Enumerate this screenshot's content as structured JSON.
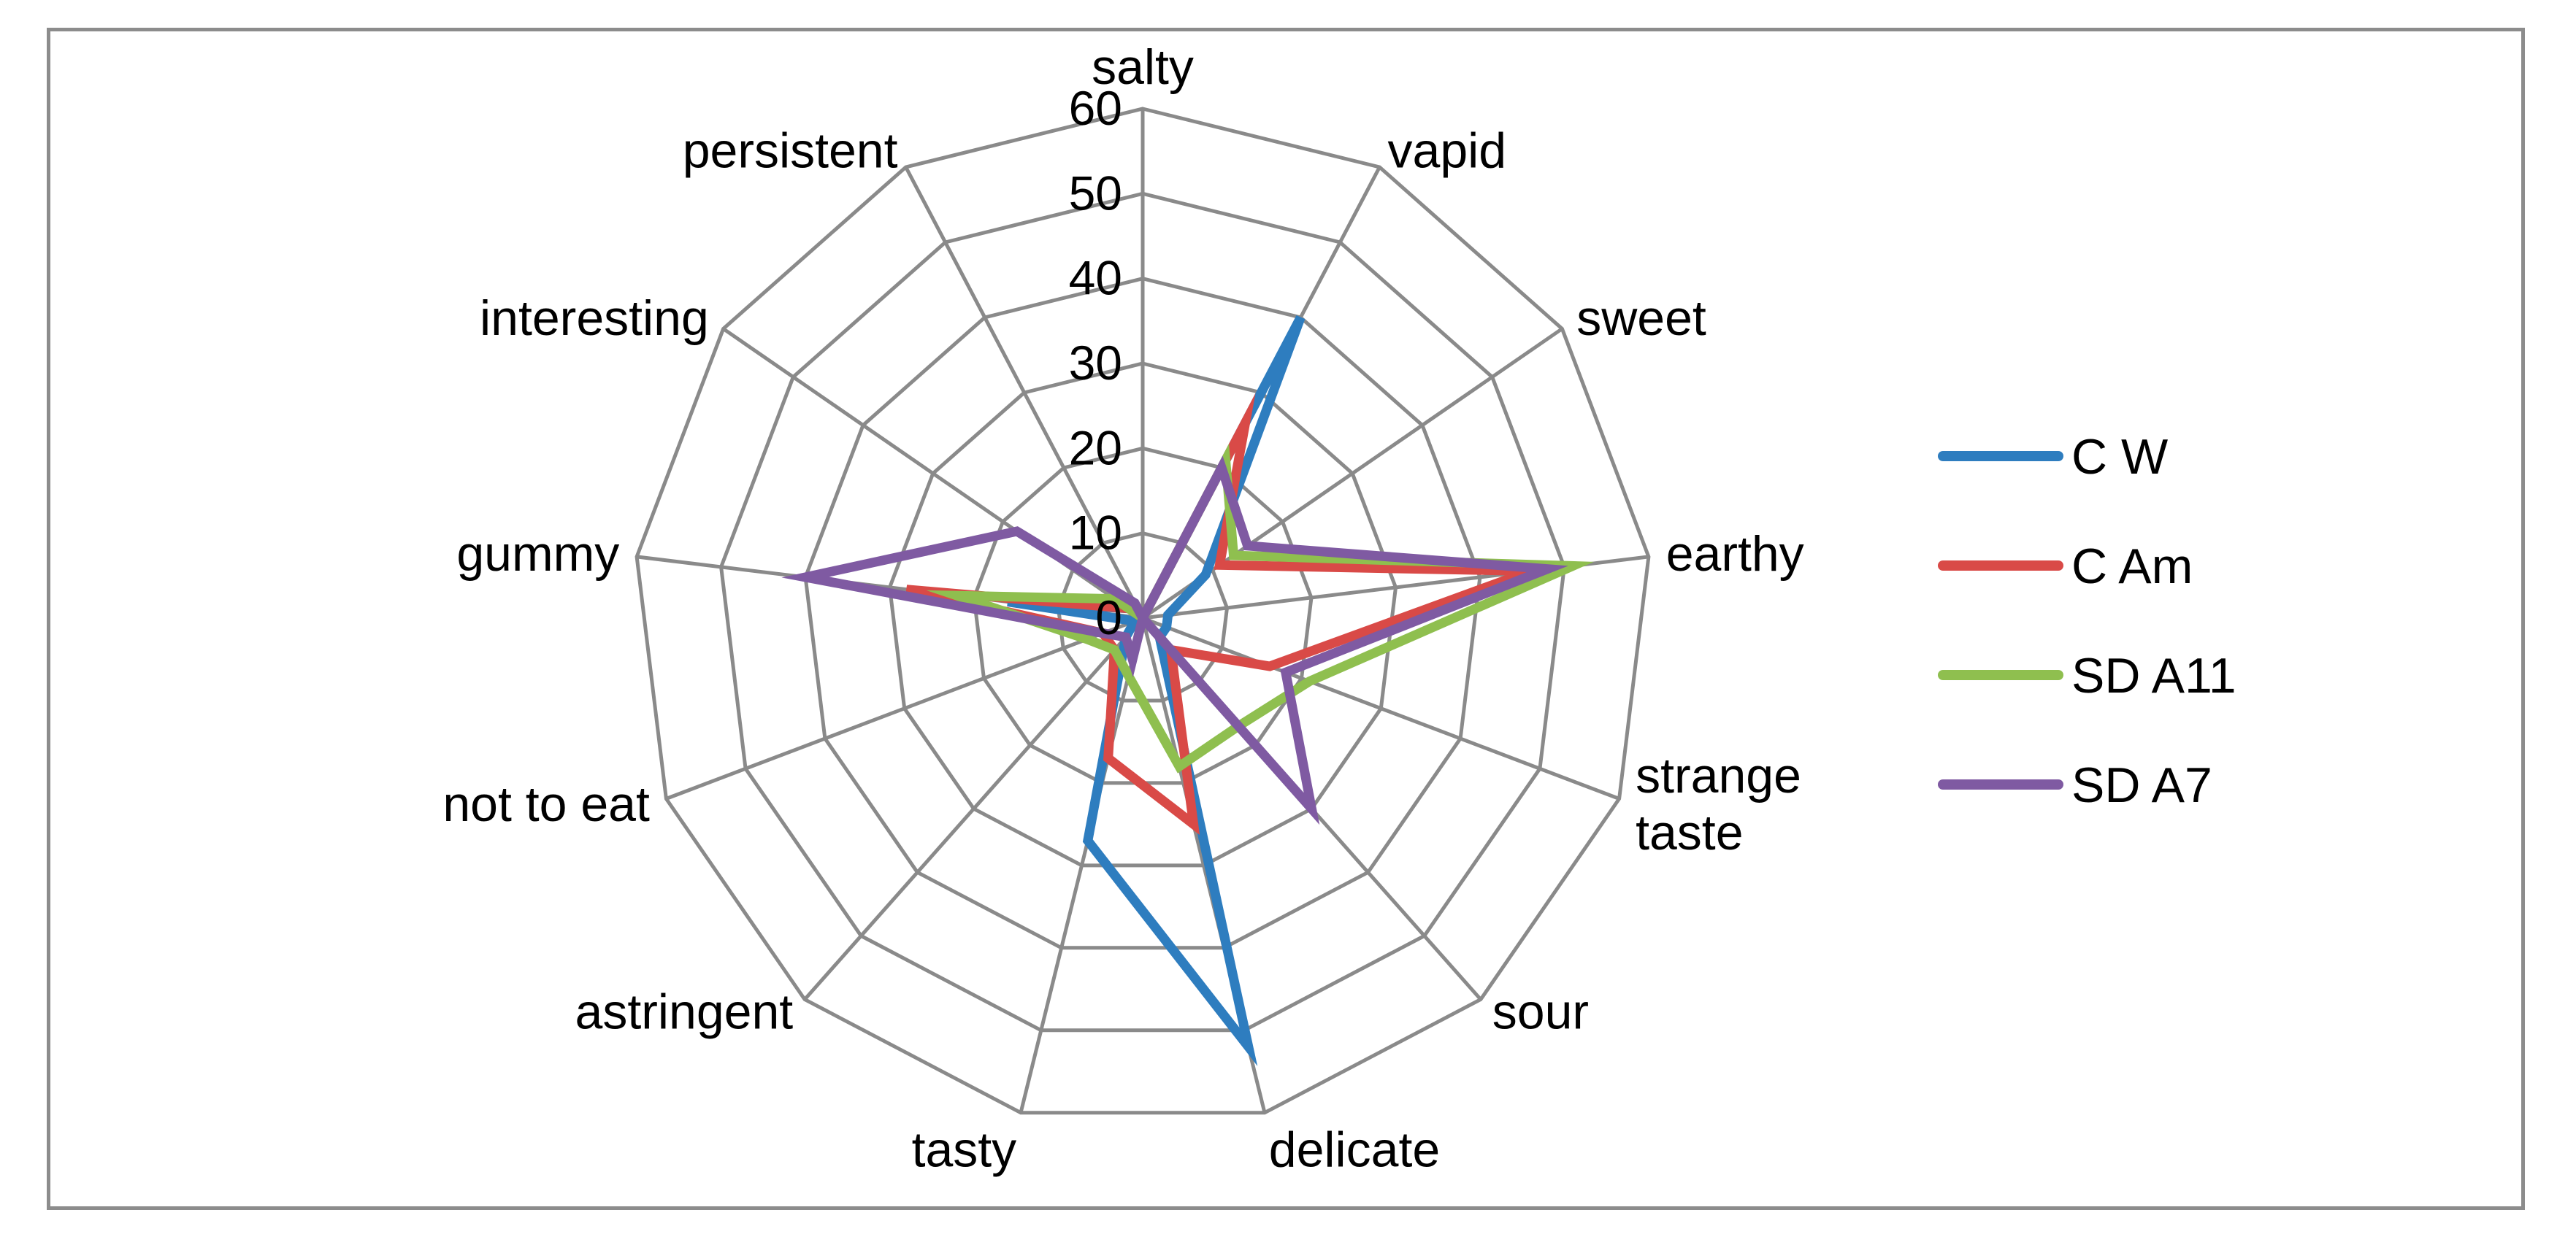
{
  "chart_data": {
    "type": "radar",
    "categories": [
      "salty",
      "vapid",
      "sweet",
      "earthy",
      "strange taste",
      "sour",
      "delicate",
      "tasty",
      "astringent",
      "not to eat",
      "gummy",
      "interesting",
      "persistent"
    ],
    "category_lines": [
      [
        "salty"
      ],
      [
        "vapid"
      ],
      [
        "sweet"
      ],
      [
        "earthy"
      ],
      [
        "strange",
        "taste"
      ],
      [
        "sour"
      ],
      [
        "delicate"
      ],
      [
        "tasty"
      ],
      [
        "astringent"
      ],
      [
        "not to eat"
      ],
      [
        "gummy"
      ],
      [
        "interesting"
      ],
      [
        "persistent"
      ]
    ],
    "radial_range": [
      0,
      60
    ],
    "radial_ticks": [
      0,
      10,
      20,
      30,
      40,
      50,
      60
    ],
    "grid": true,
    "legend_position": "right",
    "series": [
      {
        "name": "C W",
        "color": "#2e7dbf",
        "values": [
          0,
          40,
          9,
          3,
          3,
          3,
          52,
          27,
          3,
          1,
          16,
          2,
          0
        ]
      },
      {
        "name": "C Am",
        "color": "#d94a47",
        "values": [
          0,
          26,
          11,
          46,
          16,
          5,
          25,
          17,
          5,
          5,
          28,
          2,
          0
        ]
      },
      {
        "name": "SD A11",
        "color": "#8fbf4f",
        "values": [
          0,
          21,
          13,
          51,
          21,
          17,
          18,
          7,
          5,
          7,
          22,
          4,
          0
        ]
      },
      {
        "name": "SD A7",
        "color": "#7f5aa2",
        "values": [
          0,
          20,
          15,
          48,
          18,
          30,
          0,
          5,
          3,
          5,
          40,
          18,
          2
        ]
      }
    ]
  }
}
